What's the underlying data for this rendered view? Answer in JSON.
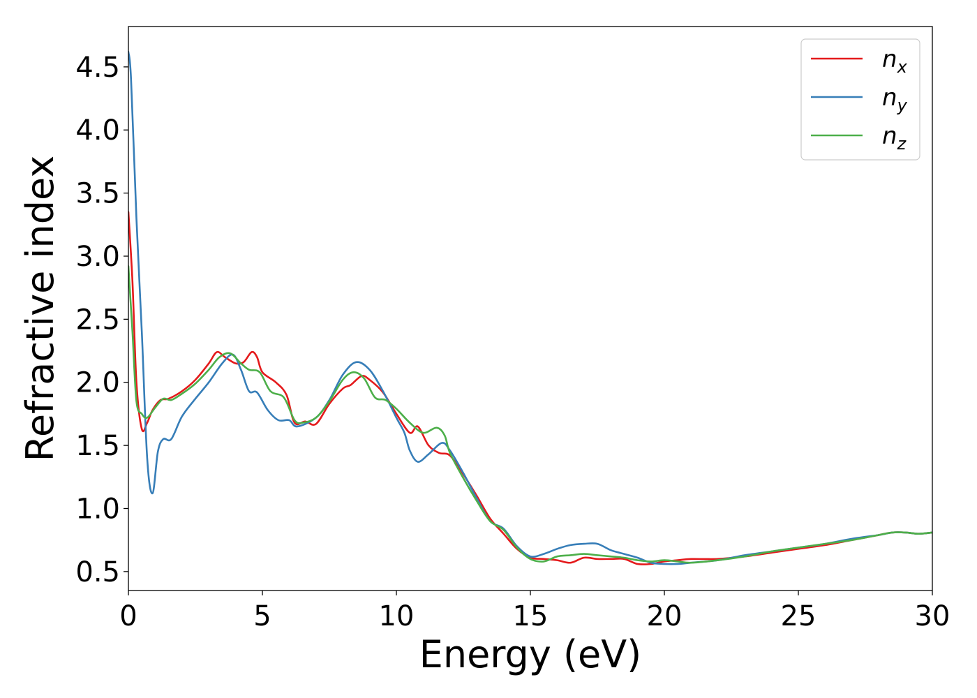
{
  "chart_data": {
    "type": "line",
    "title": "",
    "xlabel": "Energy (eV)",
    "ylabel": "Refractive index",
    "xlim": [
      0,
      30
    ],
    "ylim": [
      0.35,
      4.82
    ],
    "xticks": [
      0,
      5,
      10,
      15,
      20,
      25,
      30
    ],
    "xtick_labels": [
      "0",
      "5",
      "10",
      "15",
      "20",
      "25",
      "30"
    ],
    "yticks": [
      0.5,
      1.0,
      1.5,
      2.0,
      2.5,
      3.0,
      3.5,
      4.0,
      4.5
    ],
    "ytick_labels": [
      "0.5",
      "1.0",
      "1.5",
      "2.0",
      "2.5",
      "3.0",
      "3.5",
      "4.0",
      "4.5"
    ],
    "grid": false,
    "legend_position": "top-right",
    "series": [
      {
        "name": "n_x",
        "label_base": "n",
        "label_sub": "x",
        "color": "#e41a1c",
        "points": [
          [
            0,
            3.35
          ],
          [
            0.15,
            2.8
          ],
          [
            0.3,
            2.0
          ],
          [
            0.5,
            1.63
          ],
          [
            0.7,
            1.68
          ],
          [
            0.9,
            1.78
          ],
          [
            1.2,
            1.86
          ],
          [
            1.5,
            1.87
          ],
          [
            2,
            1.93
          ],
          [
            2.5,
            2.02
          ],
          [
            3,
            2.15
          ],
          [
            3.3,
            2.24
          ],
          [
            3.6,
            2.2
          ],
          [
            4,
            2.15
          ],
          [
            4.3,
            2.16
          ],
          [
            4.6,
            2.24
          ],
          [
            4.8,
            2.2
          ],
          [
            5,
            2.08
          ],
          [
            5.5,
            2.0
          ],
          [
            5.9,
            1.9
          ],
          [
            6.2,
            1.68
          ],
          [
            6.6,
            1.69
          ],
          [
            7,
            1.67
          ],
          [
            7.5,
            1.83
          ],
          [
            8,
            1.95
          ],
          [
            8.3,
            1.98
          ],
          [
            8.7,
            2.05
          ],
          [
            9,
            2.02
          ],
          [
            9.5,
            1.92
          ],
          [
            10,
            1.75
          ],
          [
            10.5,
            1.6
          ],
          [
            10.8,
            1.65
          ],
          [
            11.2,
            1.5
          ],
          [
            11.6,
            1.44
          ],
          [
            12,
            1.42
          ],
          [
            12.5,
            1.27
          ],
          [
            13,
            1.1
          ],
          [
            13.5,
            0.92
          ],
          [
            14,
            0.8
          ],
          [
            14.5,
            0.68
          ],
          [
            15,
            0.61
          ],
          [
            15.5,
            0.6
          ],
          [
            16,
            0.59
          ],
          [
            16.5,
            0.57
          ],
          [
            17,
            0.61
          ],
          [
            17.5,
            0.6
          ],
          [
            18,
            0.6
          ],
          [
            18.5,
            0.6
          ],
          [
            19,
            0.56
          ],
          [
            19.5,
            0.56
          ],
          [
            20,
            0.58
          ],
          [
            20.5,
            0.59
          ],
          [
            21,
            0.6
          ],
          [
            22,
            0.6
          ],
          [
            23,
            0.62
          ],
          [
            24,
            0.65
          ],
          [
            25,
            0.68
          ],
          [
            26,
            0.71
          ],
          [
            27,
            0.75
          ],
          [
            28,
            0.79
          ],
          [
            28.5,
            0.81
          ],
          [
            29,
            0.81
          ],
          [
            29.5,
            0.8
          ],
          [
            30,
            0.81
          ]
        ]
      },
      {
        "name": "n_y",
        "label_base": "n",
        "label_sub": "y",
        "color": "#377eb8",
        "points": [
          [
            0,
            4.62
          ],
          [
            0.1,
            4.4
          ],
          [
            0.3,
            3.3
          ],
          [
            0.5,
            2.4
          ],
          [
            0.7,
            1.4
          ],
          [
            0.9,
            1.12
          ],
          [
            1.1,
            1.45
          ],
          [
            1.3,
            1.55
          ],
          [
            1.6,
            1.55
          ],
          [
            2,
            1.73
          ],
          [
            2.5,
            1.87
          ],
          [
            3,
            2.0
          ],
          [
            3.5,
            2.15
          ],
          [
            3.9,
            2.22
          ],
          [
            4.2,
            2.1
          ],
          [
            4.5,
            1.93
          ],
          [
            4.8,
            1.92
          ],
          [
            5.2,
            1.78
          ],
          [
            5.6,
            1.7
          ],
          [
            6,
            1.7
          ],
          [
            6.3,
            1.65
          ],
          [
            7,
            1.72
          ],
          [
            7.5,
            1.86
          ],
          [
            8,
            2.06
          ],
          [
            8.5,
            2.16
          ],
          [
            9,
            2.1
          ],
          [
            9.5,
            1.93
          ],
          [
            10,
            1.72
          ],
          [
            10.3,
            1.6
          ],
          [
            10.5,
            1.46
          ],
          [
            10.8,
            1.37
          ],
          [
            11.2,
            1.43
          ],
          [
            11.7,
            1.52
          ],
          [
            12,
            1.46
          ],
          [
            12.5,
            1.28
          ],
          [
            13,
            1.08
          ],
          [
            13.5,
            0.9
          ],
          [
            14,
            0.84
          ],
          [
            14.5,
            0.7
          ],
          [
            15,
            0.62
          ],
          [
            15.5,
            0.64
          ],
          [
            16,
            0.68
          ],
          [
            16.5,
            0.71
          ],
          [
            17,
            0.72
          ],
          [
            17.5,
            0.72
          ],
          [
            18,
            0.67
          ],
          [
            18.5,
            0.64
          ],
          [
            19,
            0.61
          ],
          [
            19.5,
            0.57
          ],
          [
            20,
            0.56
          ],
          [
            20.5,
            0.56
          ],
          [
            21,
            0.57
          ],
          [
            22,
            0.59
          ],
          [
            23,
            0.63
          ],
          [
            24,
            0.66
          ],
          [
            25,
            0.69
          ],
          [
            26,
            0.72
          ],
          [
            27,
            0.76
          ],
          [
            28,
            0.79
          ],
          [
            28.5,
            0.81
          ],
          [
            29,
            0.81
          ],
          [
            29.5,
            0.8
          ],
          [
            30,
            0.81
          ]
        ]
      },
      {
        "name": "n_z",
        "label_base": "n",
        "label_sub": "z",
        "color": "#4daf4a",
        "points": [
          [
            0,
            2.92
          ],
          [
            0.15,
            2.4
          ],
          [
            0.3,
            1.85
          ],
          [
            0.5,
            1.75
          ],
          [
            0.7,
            1.72
          ],
          [
            1,
            1.8
          ],
          [
            1.3,
            1.87
          ],
          [
            1.6,
            1.86
          ],
          [
            2,
            1.91
          ],
          [
            2.5,
            1.99
          ],
          [
            3,
            2.1
          ],
          [
            3.4,
            2.2
          ],
          [
            3.8,
            2.23
          ],
          [
            4.2,
            2.15
          ],
          [
            4.5,
            2.1
          ],
          [
            4.9,
            2.08
          ],
          [
            5.3,
            1.93
          ],
          [
            5.8,
            1.88
          ],
          [
            6.2,
            1.7
          ],
          [
            6.5,
            1.68
          ],
          [
            7,
            1.72
          ],
          [
            7.5,
            1.85
          ],
          [
            8,
            2.02
          ],
          [
            8.4,
            2.08
          ],
          [
            8.8,
            2.03
          ],
          [
            9.2,
            1.88
          ],
          [
            9.6,
            1.86
          ],
          [
            10,
            1.79
          ],
          [
            10.5,
            1.68
          ],
          [
            11,
            1.6
          ],
          [
            11.5,
            1.64
          ],
          [
            11.8,
            1.58
          ],
          [
            12,
            1.44
          ],
          [
            12.5,
            1.24
          ],
          [
            13,
            1.06
          ],
          [
            13.5,
            0.9
          ],
          [
            14,
            0.83
          ],
          [
            14.5,
            0.69
          ],
          [
            15,
            0.6
          ],
          [
            15.5,
            0.58
          ],
          [
            16,
            0.62
          ],
          [
            16.5,
            0.63
          ],
          [
            17,
            0.64
          ],
          [
            17.5,
            0.63
          ],
          [
            18,
            0.62
          ],
          [
            18.5,
            0.61
          ],
          [
            19,
            0.59
          ],
          [
            19.5,
            0.58
          ],
          [
            20,
            0.59
          ],
          [
            20.5,
            0.58
          ],
          [
            21,
            0.57
          ],
          [
            22,
            0.59
          ],
          [
            23,
            0.62
          ],
          [
            24,
            0.66
          ],
          [
            25,
            0.69
          ],
          [
            26,
            0.72
          ],
          [
            27,
            0.75
          ],
          [
            28,
            0.79
          ],
          [
            28.5,
            0.81
          ],
          [
            29,
            0.81
          ],
          [
            29.5,
            0.8
          ],
          [
            30,
            0.81
          ]
        ]
      }
    ]
  }
}
